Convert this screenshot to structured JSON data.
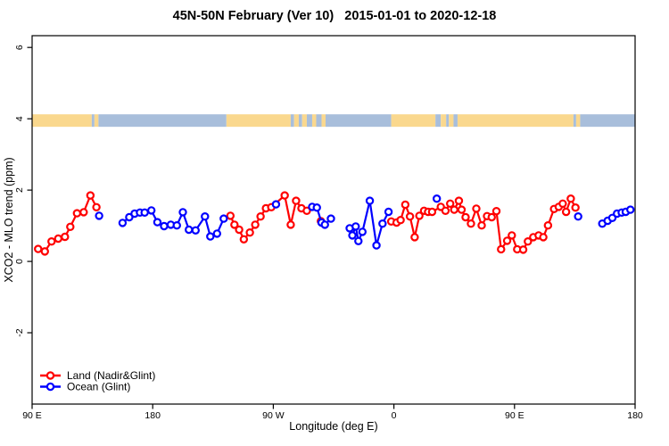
{
  "title": "45N-50N February (Ver 10)   2015-01-01 to 2020-12-18",
  "chart_data": {
    "type": "line",
    "title": "45N-50N February (Ver 10)   2015-01-01 to 2020-12-18",
    "xlabel": "Longitude (deg E)",
    "ylabel": "XCO2 - MLO trend (ppm)",
    "xlim": [
      90,
      540
    ],
    "ylim": [
      -4,
      6.33
    ],
    "grid": false,
    "legend_position": "bottom-left",
    "x_ticks": [
      {
        "value": 90,
        "label": "90 E"
      },
      {
        "value": 180,
        "label": "180"
      },
      {
        "value": 270,
        "label": "90 W"
      },
      {
        "value": 360,
        "label": "0"
      },
      {
        "value": 450,
        "label": "90 E"
      },
      {
        "value": 540,
        "label": "180"
      }
    ],
    "y_ticks": [
      {
        "value": -2,
        "label": "-2"
      },
      {
        "value": 0,
        "label": "0"
      },
      {
        "value": 2,
        "label": "2"
      },
      {
        "value": 4,
        "label": "4"
      },
      {
        "value": 6,
        "label": "6"
      }
    ],
    "map_band": {
      "description": "land/ocean strip for 45N-50N latitude band",
      "value_range": [
        3.775,
        4.125
      ],
      "land_color": "#fad88e",
      "ocean_color": "#a8bedb",
      "segments": [
        {
          "from": 90,
          "to": 134.5,
          "type": "land"
        },
        {
          "from": 134.5,
          "to": 136.5,
          "type": "ocean"
        },
        {
          "from": 136.5,
          "to": 139.5,
          "type": "land"
        },
        {
          "from": 139.5,
          "to": 235,
          "type": "ocean"
        },
        {
          "from": 235,
          "to": 283,
          "type": "land"
        },
        {
          "from": 283,
          "to": 285.5,
          "type": "ocean"
        },
        {
          "from": 285.5,
          "to": 289,
          "type": "land"
        },
        {
          "from": 289,
          "to": 291.5,
          "type": "ocean"
        },
        {
          "from": 291.5,
          "to": 295,
          "type": "land"
        },
        {
          "from": 295,
          "to": 299,
          "type": "ocean"
        },
        {
          "from": 299,
          "to": 302,
          "type": "land"
        },
        {
          "from": 302,
          "to": 306,
          "type": "ocean"
        },
        {
          "from": 306,
          "to": 309,
          "type": "land"
        },
        {
          "from": 309,
          "to": 358,
          "type": "ocean"
        },
        {
          "from": 358,
          "to": 391,
          "type": "land"
        },
        {
          "from": 391,
          "to": 395,
          "type": "ocean"
        },
        {
          "from": 395,
          "to": 399,
          "type": "land"
        },
        {
          "from": 399,
          "to": 401,
          "type": "ocean"
        },
        {
          "from": 401,
          "to": 404.5,
          "type": "land"
        },
        {
          "from": 404.5,
          "to": 407.5,
          "type": "ocean"
        },
        {
          "from": 407.5,
          "to": 494,
          "type": "land"
        },
        {
          "from": 494,
          "to": 496,
          "type": "ocean"
        },
        {
          "from": 496,
          "to": 499,
          "type": "land"
        },
        {
          "from": 499,
          "to": 540,
          "type": "ocean"
        }
      ]
    },
    "series": [
      {
        "name": "Land (Nadir&Glint)",
        "color": "#ff0000",
        "marker": "open-circle",
        "segments": [
          [
            [
              94.5,
              0.35
            ],
            [
              99.5,
              0.28
            ],
            [
              104.5,
              0.56
            ],
            [
              109.5,
              0.64
            ],
            [
              114.5,
              0.69
            ],
            [
              118.5,
              0.97
            ],
            [
              123.5,
              1.35
            ],
            [
              128.5,
              1.38
            ],
            [
              133.5,
              1.85
            ],
            [
              138,
              1.52
            ]
          ],
          [
            [
              238,
              1.28
            ],
            [
              241,
              1.03
            ],
            [
              244.5,
              0.89
            ],
            [
              248,
              0.62
            ],
            [
              252.5,
              0.81
            ],
            [
              256.5,
              1.03
            ],
            [
              260.5,
              1.26
            ],
            [
              264.5,
              1.49
            ],
            [
              268.5,
              1.52
            ],
            [
              278.5,
              1.85
            ],
            [
              283,
              1.03
            ],
            [
              287,
              1.7
            ],
            [
              291,
              1.49
            ],
            [
              295,
              1.42
            ]
          ],
          [
            [
              305.5,
              1.13
            ]
          ],
          [
            [
              358,
              1.12
            ],
            [
              362,
              1.09
            ],
            [
              365,
              1.16
            ],
            [
              368.5,
              1.59
            ],
            [
              372,
              1.26
            ],
            [
              375.5,
              0.68
            ],
            [
              379,
              1.28
            ],
            [
              382.5,
              1.42
            ],
            [
              385.5,
              1.39
            ],
            [
              388.5,
              1.39
            ],
            [
              395,
              1.53
            ],
            [
              398.5,
              1.42
            ],
            [
              402,
              1.62
            ],
            [
              405,
              1.45
            ],
            [
              408.5,
              1.7
            ],
            [
              410.5,
              1.45
            ],
            [
              413.5,
              1.24
            ],
            [
              417.5,
              1.06
            ],
            [
              421.5,
              1.48
            ],
            [
              425.5,
              1.01
            ],
            [
              429.5,
              1.27
            ],
            [
              433,
              1.24
            ],
            [
              436.5,
              1.41
            ],
            [
              440,
              0.34
            ],
            [
              444.5,
              0.58
            ],
            [
              448,
              0.73
            ],
            [
              452,
              0.34
            ],
            [
              456.5,
              0.33
            ],
            [
              460,
              0.56
            ],
            [
              464,
              0.68
            ],
            [
              468,
              0.73
            ],
            [
              471.5,
              0.68
            ],
            [
              475,
              1.01
            ],
            [
              479.5,
              1.47
            ],
            [
              483,
              1.53
            ],
            [
              486,
              1.62
            ],
            [
              488.5,
              1.39
            ],
            [
              492,
              1.76
            ],
            [
              495.5,
              1.51
            ]
          ]
        ]
      },
      {
        "name": "Ocean (Glint)",
        "color": "#0000ff",
        "marker": "open-circle",
        "segments": [
          [
            [
              140,
              1.28
            ]
          ],
          [
            [
              157.5,
              1.08
            ],
            [
              162.5,
              1.24
            ],
            [
              166.5,
              1.34
            ],
            [
              170.5,
              1.37
            ],
            [
              174,
              1.37
            ],
            [
              179,
              1.43
            ],
            [
              183.5,
              1.1
            ],
            [
              188.5,
              0.99
            ],
            [
              193.5,
              1.03
            ],
            [
              198,
              1.01
            ],
            [
              202.5,
              1.38
            ],
            [
              207,
              0.89
            ],
            [
              212,
              0.87
            ],
            [
              219,
              1.26
            ],
            [
              223,
              0.7
            ],
            [
              228,
              0.78
            ],
            [
              233,
              1.2
            ]
          ],
          [
            [
              272,
              1.6
            ]
          ],
          [
            [
              299,
              1.53
            ],
            [
              302.5,
              1.51
            ],
            [
              306,
              1.09
            ],
            [
              308.5,
              1.03
            ],
            [
              313,
              1.2
            ]
          ],
          [
            [
              327,
              0.93
            ],
            [
              329,
              0.73
            ],
            [
              331.5,
              0.98
            ],
            [
              333.5,
              0.57
            ],
            [
              336.5,
              0.83
            ],
            [
              342,
              1.7
            ],
            [
              347,
              0.45
            ],
            [
              351.5,
              1.06
            ],
            [
              356,
              1.39
            ]
          ],
          [
            [
              392,
              1.76
            ]
          ],
          [
            [
              497.5,
              1.26
            ]
          ],
          [
            [
              515.5,
              1.06
            ],
            [
              519.5,
              1.14
            ],
            [
              523,
              1.22
            ],
            [
              526.5,
              1.34
            ],
            [
              530,
              1.37
            ],
            [
              533,
              1.39
            ],
            [
              536.5,
              1.45
            ]
          ]
        ]
      }
    ],
    "legend": [
      {
        "label": "Land (Nadir&Glint)",
        "color": "#ff0000"
      },
      {
        "label": "Ocean (Glint)",
        "color": "#0000ff"
      }
    ]
  },
  "colors": {
    "axis": "#000000",
    "background": "#ffffff",
    "land_series": "#ff0000",
    "ocean_series": "#0000ff",
    "band_land": "#fad88e",
    "band_ocean": "#a8bedb"
  }
}
